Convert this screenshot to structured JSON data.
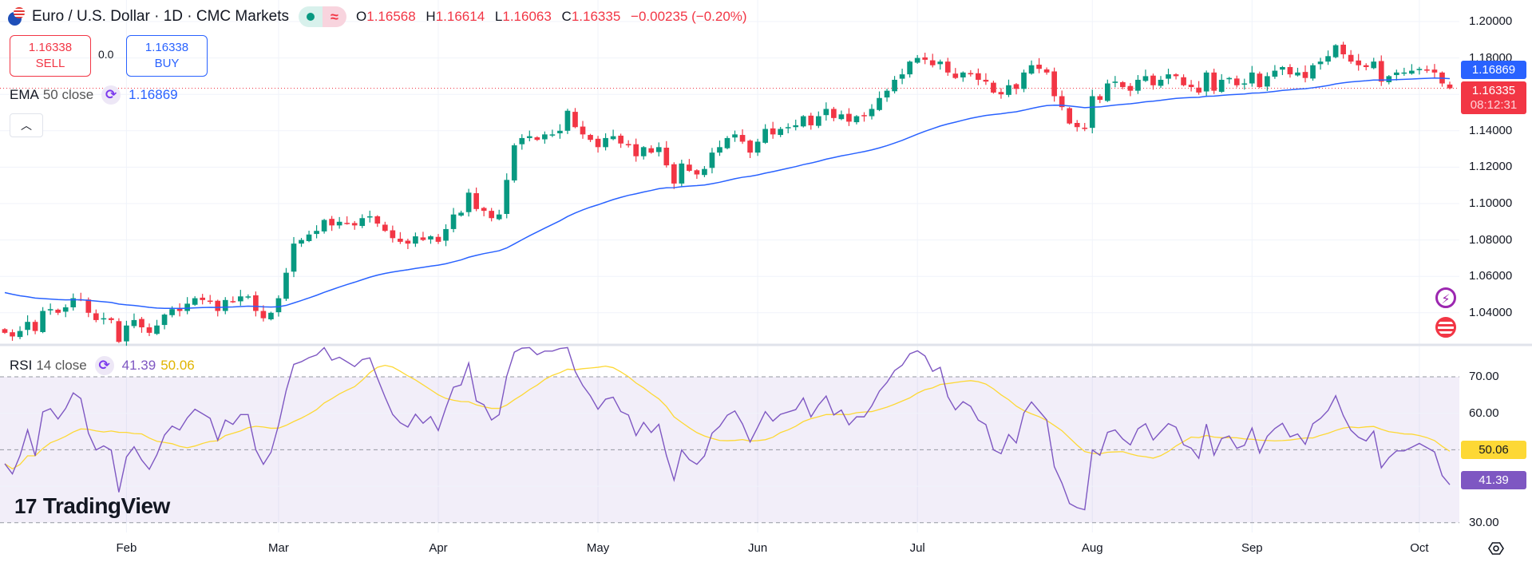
{
  "header": {
    "title": "Euro / U.S. Dollar · 1D · CMC Markets",
    "ohlc": {
      "o_label": "O",
      "o": "1.16568",
      "h_label": "H",
      "h": "1.16614",
      "l_label": "L",
      "l": "1.16063",
      "c_label": "C",
      "c": "1.16335",
      "change": "−0.00235 (−0.20%)"
    }
  },
  "trade": {
    "sell_price": "1.16338",
    "sell_label": "SELL",
    "spread": "0.0",
    "buy_price": "1.16338",
    "buy_label": "BUY"
  },
  "ema_legend": {
    "name": "EMA",
    "args": "50 close",
    "value": "1.16869"
  },
  "rsi_legend": {
    "name": "RSI",
    "args": "14 close",
    "value": "41.39",
    "ma_value": "50.06"
  },
  "branding": "TradingView",
  "price_axis": {
    "ticks": [
      "1.20000",
      "1.18000",
      "1.14000",
      "1.12000",
      "1.10000",
      "1.08000",
      "1.06000",
      "1.04000"
    ],
    "ema_tag": "1.16869",
    "last_price_tag": "1.16335",
    "countdown": "08:12:31"
  },
  "rsi_axis": {
    "ticks": [
      "70.00",
      "60.00",
      "30.00"
    ],
    "ma_tag": "50.06",
    "rsi_tag": "41.39"
  },
  "colors": {
    "up": "#089981",
    "down": "#f23645",
    "ema": "#2962ff",
    "rsi": "#7e57c2",
    "rsi_ma": "#fdd835"
  },
  "chart_data": {
    "type": "candlestick",
    "symbol": "EURUSD 1D",
    "price_range": [
      1.025,
      1.205
    ],
    "rsi_range": [
      25,
      80
    ],
    "last_price": 1.16335,
    "ema_period": 50,
    "rsi_period": 14,
    "months": [
      {
        "label": "Feb",
        "start": 16
      },
      {
        "label": "Mar",
        "start": 36
      },
      {
        "label": "Apr",
        "start": 57
      },
      {
        "label": "May",
        "start": 78
      },
      {
        "label": "Jun",
        "start": 99
      },
      {
        "label": "Jul",
        "start": 120
      },
      {
        "label": "Aug",
        "start": 143
      },
      {
        "label": "Sep",
        "start": 164
      },
      {
        "label": "Oct",
        "start": 186
      }
    ],
    "closes": [
      1.029,
      1.027,
      1.03,
      1.035,
      1.03,
      1.041,
      1.042,
      1.04,
      1.043,
      1.048,
      1.047,
      1.04,
      1.036,
      1.037,
      1.036,
      1.024,
      1.033,
      1.036,
      1.032,
      1.029,
      1.033,
      1.039,
      1.042,
      1.041,
      1.045,
      1.048,
      1.047,
      1.046,
      1.041,
      1.047,
      1.046,
      1.049,
      1.049,
      1.041,
      1.037,
      1.04,
      1.048,
      1.062,
      1.078,
      1.08,
      1.083,
      1.085,
      1.091,
      1.088,
      1.09,
      1.089,
      1.088,
      1.092,
      1.093,
      1.089,
      1.085,
      1.081,
      1.079,
      1.078,
      1.082,
      1.08,
      1.082,
      1.079,
      1.086,
      1.094,
      1.095,
      1.106,
      1.097,
      1.096,
      1.092,
      1.094,
      1.113,
      1.132,
      1.136,
      1.137,
      1.135,
      1.138,
      1.138,
      1.14,
      1.151,
      1.142,
      1.138,
      1.135,
      1.131,
      1.136,
      1.137,
      1.133,
      1.132,
      1.126,
      1.131,
      1.128,
      1.131,
      1.121,
      1.111,
      1.122,
      1.118,
      1.116,
      1.119,
      1.128,
      1.131,
      1.136,
      1.138,
      1.134,
      1.128,
      1.134,
      1.141,
      1.138,
      1.141,
      1.142,
      1.143,
      1.148,
      1.143,
      1.148,
      1.152,
      1.147,
      1.149,
      1.145,
      1.148,
      1.148,
      1.152,
      1.158,
      1.162,
      1.168,
      1.171,
      1.178,
      1.18,
      1.179,
      1.176,
      1.178,
      1.172,
      1.169,
      1.172,
      1.171,
      1.168,
      1.167,
      1.161,
      1.16,
      1.165,
      1.163,
      1.172,
      1.176,
      1.174,
      1.172,
      1.159,
      1.153,
      1.144,
      1.142,
      1.141,
      1.159,
      1.157,
      1.166,
      1.167,
      1.164,
      1.162,
      1.168,
      1.17,
      1.165,
      1.168,
      1.171,
      1.17,
      1.165,
      1.164,
      1.161,
      1.172,
      1.162,
      1.168,
      1.169,
      1.165,
      1.166,
      1.172,
      1.164,
      1.17,
      1.173,
      1.175,
      1.171,
      1.172,
      1.169,
      1.176,
      1.178,
      1.181,
      1.187,
      1.182,
      1.178,
      1.176,
      1.175,
      1.178,
      1.167,
      1.17,
      1.172,
      1.172,
      1.173,
      1.174,
      1.173,
      1.172,
      1.166,
      1.16335
    ]
  }
}
